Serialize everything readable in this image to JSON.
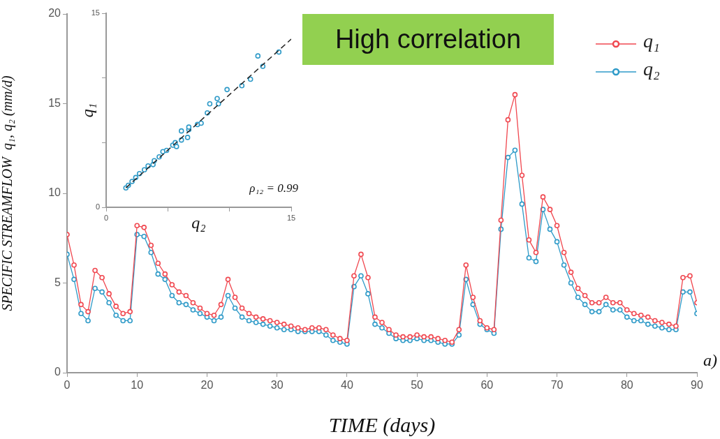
{
  "chart_data": [
    {
      "type": "line",
      "title": "High correlation",
      "xlabel": "TIME (days)",
      "ylabel": "SPECIFIC STREAMFLOW  q₁, q₂ (mm/d)",
      "x": [
        0,
        1,
        2,
        3,
        4,
        5,
        6,
        7,
        8,
        9,
        10,
        11,
        12,
        13,
        14,
        15,
        16,
        17,
        18,
        19,
        20,
        21,
        22,
        23,
        24,
        25,
        26,
        27,
        28,
        29,
        30,
        31,
        32,
        33,
        34,
        35,
        36,
        37,
        38,
        39,
        40,
        41,
        42,
        43,
        44,
        45,
        46,
        47,
        48,
        49,
        50,
        51,
        52,
        53,
        54,
        55,
        56,
        57,
        58,
        59,
        60,
        61,
        62,
        63,
        64,
        65,
        66,
        67,
        68,
        69,
        70,
        71,
        72,
        73,
        74,
        75,
        76,
        77,
        78,
        79,
        80,
        81,
        82,
        83,
        84,
        85,
        86,
        87,
        88,
        89,
        90
      ],
      "series": [
        {
          "name": "q₁",
          "color": "#f0474f",
          "values": [
            7.7,
            6.0,
            3.8,
            3.4,
            5.7,
            5.3,
            4.4,
            3.7,
            3.3,
            3.4,
            8.2,
            8.1,
            7.1,
            6.1,
            5.5,
            4.9,
            4.5,
            4.3,
            3.9,
            3.6,
            3.3,
            3.2,
            3.8,
            5.2,
            4.2,
            3.6,
            3.3,
            3.1,
            3.0,
            2.9,
            2.8,
            2.7,
            2.6,
            2.5,
            2.4,
            2.5,
            2.5,
            2.4,
            2.1,
            1.9,
            1.8,
            5.4,
            6.6,
            5.3,
            3.1,
            2.8,
            2.4,
            2.1,
            2.0,
            2.0,
            2.1,
            2.0,
            2.0,
            1.9,
            1.8,
            1.7,
            2.4,
            6.0,
            4.2,
            2.9,
            2.5,
            2.4,
            8.5,
            14.1,
            15.5,
            11.0,
            7.4,
            6.7,
            9.8,
            9.1,
            8.2,
            6.7,
            5.6,
            4.7,
            4.3,
            3.9,
            3.9,
            4.2,
            3.9,
            3.9,
            3.5,
            3.3,
            3.2,
            3.1,
            2.9,
            2.8,
            2.7,
            2.6,
            5.3,
            5.4,
            3.9
          ]
        },
        {
          "name": "q₂",
          "color": "#2e9ac8",
          "values": [
            6.6,
            5.2,
            3.3,
            2.9,
            4.7,
            4.5,
            3.9,
            3.2,
            2.9,
            2.9,
            7.7,
            7.6,
            6.7,
            5.5,
            5.2,
            4.3,
            3.9,
            3.8,
            3.5,
            3.3,
            3.1,
            2.9,
            3.1,
            4.3,
            3.6,
            3.1,
            2.9,
            2.8,
            2.7,
            2.6,
            2.5,
            2.4,
            2.4,
            2.3,
            2.3,
            2.3,
            2.3,
            2.1,
            1.8,
            1.7,
            1.6,
            4.8,
            5.4,
            4.4,
            2.7,
            2.5,
            2.2,
            1.9,
            1.8,
            1.8,
            1.9,
            1.8,
            1.8,
            1.7,
            1.6,
            1.6,
            2.1,
            5.2,
            3.8,
            2.7,
            2.4,
            2.2,
            8.0,
            12.0,
            12.4,
            9.4,
            6.4,
            6.2,
            9.1,
            8.0,
            7.3,
            6.0,
            5.0,
            4.2,
            3.8,
            3.4,
            3.4,
            3.8,
            3.5,
            3.5,
            3.1,
            2.9,
            2.9,
            2.7,
            2.6,
            2.5,
            2.4,
            2.4,
            4.5,
            4.5,
            3.3
          ]
        }
      ],
      "xlim": [
        0,
        90
      ],
      "xticks": [
        0,
        10,
        20,
        30,
        40,
        50,
        60,
        70,
        80,
        90
      ],
      "ylim": [
        0,
        20
      ],
      "yticks": [
        0,
        5,
        10,
        15,
        20
      ],
      "grid": false,
      "legend": "top right",
      "marker": "circle",
      "line_style": "solid",
      "annotations": [
        "a)"
      ]
    },
    {
      "type": "scatter",
      "xlabel": "q₂",
      "ylabel": "q₁",
      "series": [
        {
          "color": "#2e9ac8",
          "x": [
            1.6,
            1.8,
            2.1,
            2.4,
            2.7,
            3.1,
            3.4,
            3.8,
            3.9,
            4.3,
            4.6,
            4.9,
            5.4,
            5.7,
            5.6,
            6.1,
            6.6,
            6.1,
            6.7,
            6.7,
            7.4,
            7.7,
            8.2,
            8.4,
            9.1,
            9.0,
            9.8,
            11.0,
            11.7,
            12.7,
            12.3,
            14.0
          ],
          "values": [
            1.5,
            1.7,
            2.0,
            2.3,
            2.6,
            2.9,
            3.2,
            3.3,
            3.6,
            3.9,
            4.3,
            4.4,
            4.8,
            4.7,
            5.0,
            5.2,
            5.4,
            5.9,
            6.0,
            6.2,
            6.4,
            6.5,
            7.3,
            8.0,
            8.0,
            8.4,
            9.1,
            9.4,
            9.9,
            10.9,
            11.7,
            12.0
          ]
        },
        {
          "type": "line",
          "color": "#222222",
          "line_style": "dashed",
          "marker": "none",
          "x": [
            1.6,
            15
          ],
          "values": [
            1.5,
            13.0
          ]
        }
      ],
      "xlim": [
        0,
        15
      ],
      "xticks": [
        0,
        {
          "value": 5,
          "label": null
        },
        {
          "value": 10,
          "label": null
        },
        15
      ],
      "ylim": [
        0,
        15
      ],
      "yticks": [
        0,
        {
          "value": 5,
          "label": null
        },
        {
          "value": 10,
          "label": null
        },
        15
      ],
      "grid": false,
      "marker": "circle",
      "annotations": [
        "ρ₁₂ = 0.99"
      ]
    }
  ]
}
